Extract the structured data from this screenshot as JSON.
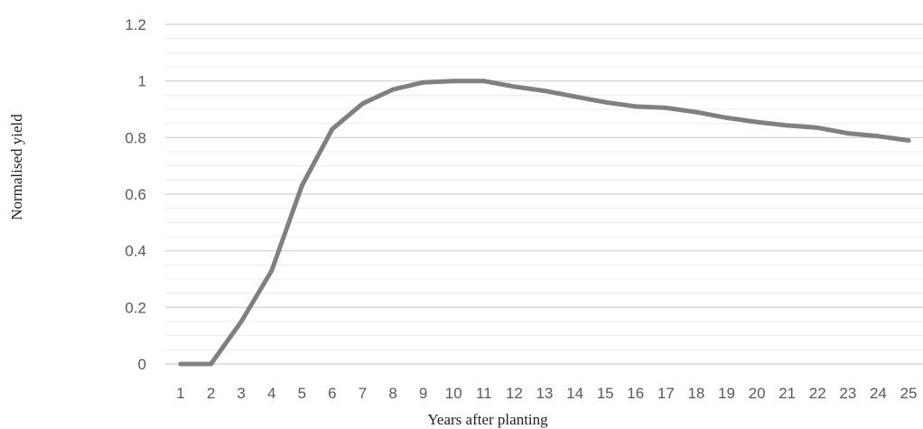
{
  "chart_data": {
    "type": "line",
    "title": "",
    "xlabel": "Years after planting",
    "ylabel": "Normalised yield",
    "x": [
      1,
      2,
      3,
      4,
      5,
      6,
      7,
      8,
      9,
      10,
      11,
      12,
      13,
      14,
      15,
      16,
      17,
      18,
      19,
      20,
      21,
      22,
      23,
      24,
      25
    ],
    "series": [
      {
        "values": [
          0,
          0,
          0.15,
          0.33,
          0.63,
          0.83,
          0.92,
          0.97,
          0.995,
          1.0,
          1.0,
          0.98,
          0.965,
          0.945,
          0.925,
          0.91,
          0.905,
          0.89,
          0.87,
          0.855,
          0.843,
          0.835,
          0.815,
          0.805,
          0.79
        ],
        "color": "#808080"
      }
    ],
    "ylim": [
      0,
      1.2
    ],
    "yticks": [
      0,
      0.2,
      0.4,
      0.6,
      0.8,
      1,
      1.2
    ],
    "ytick_labels": [
      "0",
      "0.2",
      "0.4",
      "0.6",
      "0.8",
      "1",
      "1.2"
    ],
    "xtick_labels": [
      "1",
      "2",
      "3",
      "4",
      "5",
      "6",
      "7",
      "8",
      "9",
      "10",
      "11",
      "12",
      "13",
      "14",
      "15",
      "16",
      "17",
      "18",
      "19",
      "20",
      "21",
      "22",
      "23",
      "24",
      "25"
    ],
    "minor_y_step": 0.05,
    "grid": true,
    "legend": "none"
  }
}
